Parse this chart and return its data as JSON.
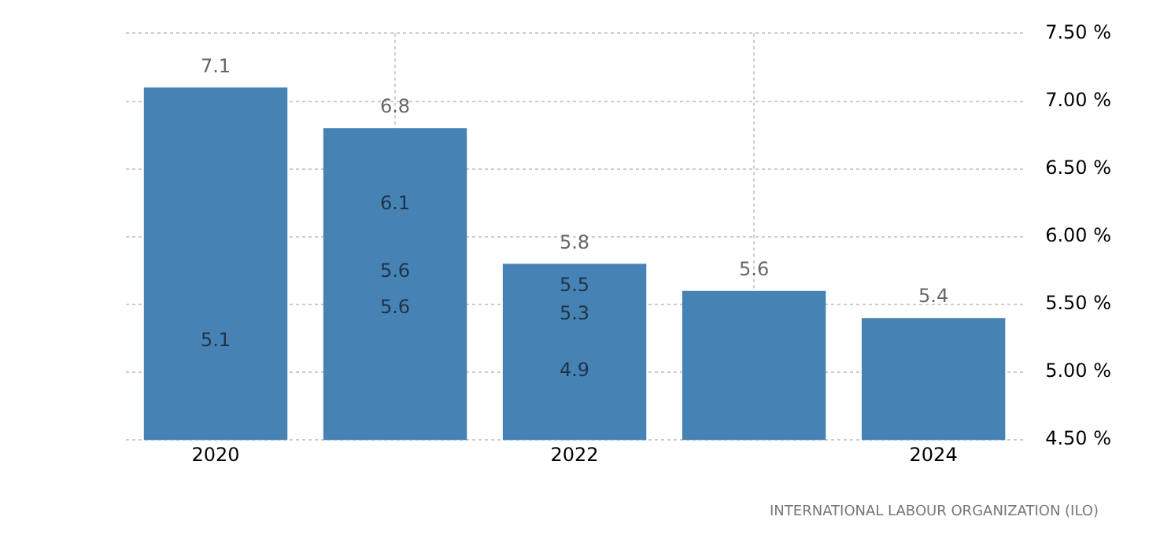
{
  "chart_data": {
    "type": "bar",
    "x": [
      2020,
      2021,
      2022,
      2023,
      2024
    ],
    "values": [
      7.1,
      6.8,
      5.8,
      5.6,
      5.4
    ],
    "color": "#4682b4",
    "data_labels": true,
    "xlim": [
      2019.5,
      2024.5
    ],
    "xticks": [
      2020,
      2022,
      2024
    ],
    "ylim": [
      4.5,
      7.5
    ],
    "yticks": [
      {
        "value": 4.5,
        "label": "4.50 %"
      },
      {
        "value": 5,
        "label": "5.00 %"
      },
      {
        "value": 5.5,
        "label": "5.50 %"
      },
      {
        "value": 6,
        "label": "6.00 %"
      },
      {
        "value": 6.5,
        "label": "6.50 %"
      },
      {
        "value": 7,
        "label": "7.00 %"
      },
      {
        "value": 7.5,
        "label": "7.50 %"
      }
    ],
    "grid": true,
    "annotations": [
      "5.1",
      "6.1",
      "5.6",
      "5.6",
      "5.5",
      "5.3",
      "4.9",
      "INTERNATIONAL LABOUR ORGANIZATION (ILO)"
    ]
  }
}
